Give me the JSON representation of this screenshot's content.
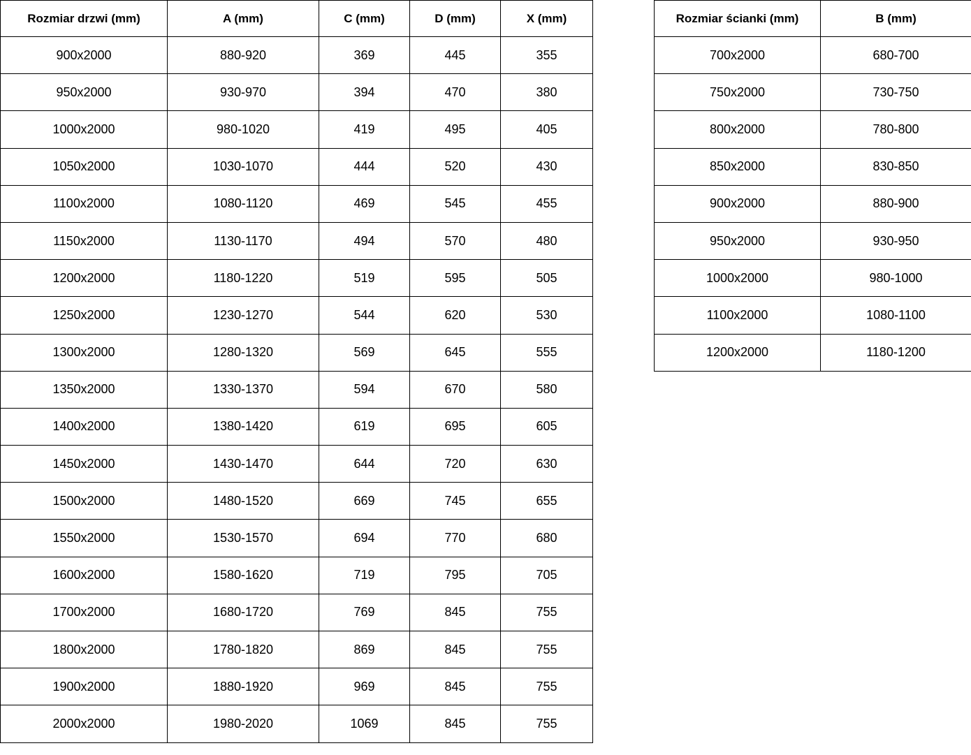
{
  "doors_table": {
    "headers": [
      "Rozmiar drzwi (mm)",
      "A (mm)",
      "C (mm)",
      "D (mm)",
      "X (mm)"
    ],
    "rows": [
      [
        "900x2000",
        "880-920",
        "369",
        "445",
        "355"
      ],
      [
        "950x2000",
        "930-970",
        "394",
        "470",
        "380"
      ],
      [
        "1000x2000",
        "980-1020",
        "419",
        "495",
        "405"
      ],
      [
        "1050x2000",
        "1030-1070",
        "444",
        "520",
        "430"
      ],
      [
        "1100x2000",
        "1080-1120",
        "469",
        "545",
        "455"
      ],
      [
        "1150x2000",
        "1130-1170",
        "494",
        "570",
        "480"
      ],
      [
        "1200x2000",
        "1180-1220",
        "519",
        "595",
        "505"
      ],
      [
        "1250x2000",
        "1230-1270",
        "544",
        "620",
        "530"
      ],
      [
        "1300x2000",
        "1280-1320",
        "569",
        "645",
        "555"
      ],
      [
        "1350x2000",
        "1330-1370",
        "594",
        "670",
        "580"
      ],
      [
        "1400x2000",
        "1380-1420",
        "619",
        "695",
        "605"
      ],
      [
        "1450x2000",
        "1430-1470",
        "644",
        "720",
        "630"
      ],
      [
        "1500x2000",
        "1480-1520",
        "669",
        "745",
        "655"
      ],
      [
        "1550x2000",
        "1530-1570",
        "694",
        "770",
        "680"
      ],
      [
        "1600x2000",
        "1580-1620",
        "719",
        "795",
        "705"
      ],
      [
        "1700x2000",
        "1680-1720",
        "769",
        "845",
        "755"
      ],
      [
        "1800x2000",
        "1780-1820",
        "869",
        "845",
        "755"
      ],
      [
        "1900x2000",
        "1880-1920",
        "969",
        "845",
        "755"
      ],
      [
        "2000x2000",
        "1980-2020",
        "1069",
        "845",
        "755"
      ]
    ]
  },
  "wall_table": {
    "headers": [
      "Rozmiar ścianki (mm)",
      "B (mm)"
    ],
    "rows": [
      [
        "700x2000",
        "680-700"
      ],
      [
        "750x2000",
        "730-750"
      ],
      [
        "800x2000",
        "780-800"
      ],
      [
        "850x2000",
        "830-850"
      ],
      [
        "900x2000",
        "880-900"
      ],
      [
        "950x2000",
        "930-950"
      ],
      [
        "1000x2000",
        "980-1000"
      ],
      [
        "1100x2000",
        "1080-1100"
      ],
      [
        "1200x2000",
        "1180-1200"
      ]
    ]
  },
  "colors": {
    "border": "#000000",
    "text": "#000000",
    "background": "#ffffff"
  }
}
